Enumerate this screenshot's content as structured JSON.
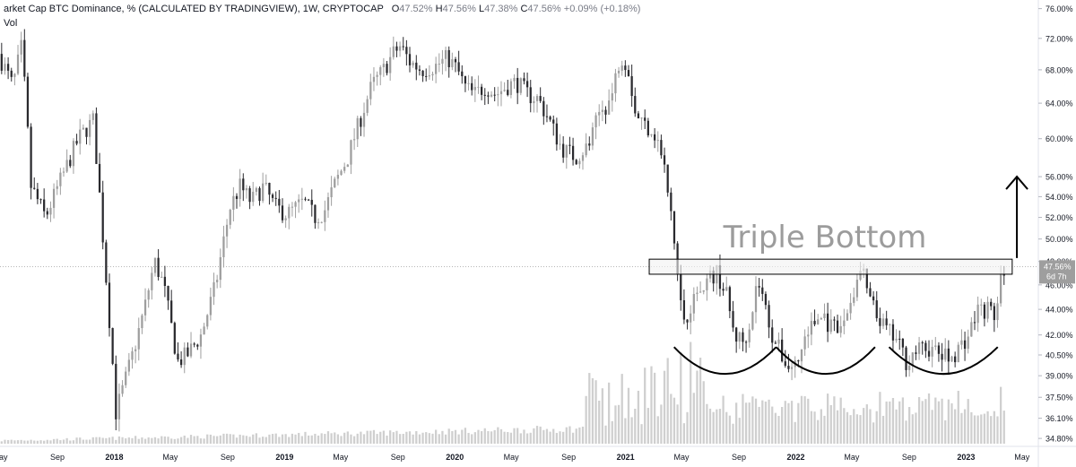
{
  "legend": {
    "title": "arket Cap BTC Dominance, % (CALCULATED BY TRADINGVIEW), 1W, CRYPTOCAP",
    "o_label": "O",
    "o_value": "47.52%",
    "h_label": "H",
    "h_value": "47.56%",
    "l_label": "L",
    "l_value": "47.38%",
    "c_label": "C",
    "c_value": "47.56%",
    "change": "+0.09% (+0.18%)",
    "vol_label": "Vol"
  },
  "colors": {
    "up": "#9e9e9e",
    "down": "#2a2a2e",
    "volume": "#cfcfcf",
    "last_price_box": "#9e9e9e",
    "annotation": "#000000",
    "annotation_text": "#9c9c9c",
    "resistance_fill": "#f2f2f2"
  },
  "chart_data": {
    "type": "candlestick",
    "y_scale": "log",
    "ylim": [
      34.3,
      77.2
    ],
    "x_range": [
      "2017-05-01",
      "2023-06-05"
    ],
    "y_ticks": [
      "76.00%",
      "72.00%",
      "68.00%",
      "64.00%",
      "60.00%",
      "56.00%",
      "54.00%",
      "52.00%",
      "50.00%",
      "48.00%",
      "46.00%",
      "44.00%",
      "42.00%",
      "40.50%",
      "39.00%",
      "37.50%",
      "36.10%",
      "34.80%"
    ],
    "x_ticks": [
      {
        "label": "May",
        "date": "2017-05-01"
      },
      {
        "label": "Sep",
        "date": "2017-09-01"
      },
      {
        "label": "2018",
        "date": "2018-01-01"
      },
      {
        "label": "May",
        "date": "2018-05-01"
      },
      {
        "label": "Sep",
        "date": "2018-09-01"
      },
      {
        "label": "2019",
        "date": "2019-01-01"
      },
      {
        "label": "May",
        "date": "2019-05-01"
      },
      {
        "label": "Sep",
        "date": "2019-09-01"
      },
      {
        "label": "2020",
        "date": "2020-01-01"
      },
      {
        "label": "May",
        "date": "2020-05-01"
      },
      {
        "label": "Sep",
        "date": "2020-09-01"
      },
      {
        "label": "2021",
        "date": "2021-01-01"
      },
      {
        "label": "May",
        "date": "2021-05-01"
      },
      {
        "label": "Sep",
        "date": "2021-09-01"
      },
      {
        "label": "2022",
        "date": "2022-01-01"
      },
      {
        "label": "May",
        "date": "2022-05-01"
      },
      {
        "label": "Sep",
        "date": "2022-09-01"
      },
      {
        "label": "2023",
        "date": "2023-01-01"
      },
      {
        "label": "May",
        "date": "2023-05-01"
      }
    ],
    "series_path": [
      [
        "2017-05-01",
        70
      ],
      [
        "2017-06-01",
        66
      ],
      [
        "2017-06-20",
        71
      ],
      [
        "2017-07-10",
        55
      ],
      [
        "2017-08-10",
        52
      ],
      [
        "2017-09-15",
        56
      ],
      [
        "2017-10-20",
        60
      ],
      [
        "2017-11-20",
        62
      ],
      [
        "2017-12-15",
        48
      ],
      [
        "2018-01-08",
        36.5
      ],
      [
        "2018-01-25",
        38.3
      ],
      [
        "2018-02-15",
        40.8
      ],
      [
        "2018-03-10",
        44
      ],
      [
        "2018-04-01",
        48
      ],
      [
        "2018-04-20",
        46
      ],
      [
        "2018-05-20",
        40
      ],
      [
        "2018-06-10",
        40.5
      ],
      [
        "2018-07-10",
        42
      ],
      [
        "2018-08-10",
        46
      ],
      [
        "2018-09-10",
        53
      ],
      [
        "2018-10-01",
        55
      ],
      [
        "2018-10-25",
        53.5
      ],
      [
        "2018-11-20",
        55
      ],
      [
        "2018-12-15",
        53
      ],
      [
        "2019-01-10",
        52.3
      ],
      [
        "2019-02-15",
        53.5
      ],
      [
        "2019-03-10",
        52
      ],
      [
        "2019-03-30",
        52.5
      ],
      [
        "2019-04-20",
        55
      ],
      [
        "2019-05-20",
        58
      ],
      [
        "2019-06-15",
        62
      ],
      [
        "2019-07-10",
        66
      ],
      [
        "2019-08-05",
        68
      ],
      [
        "2019-08-25",
        70
      ],
      [
        "2019-09-10",
        71
      ],
      [
        "2019-09-30",
        69
      ],
      [
        "2019-10-25",
        68
      ],
      [
        "2019-11-25",
        68.5
      ],
      [
        "2019-12-20",
        69.5
      ],
      [
        "2020-01-10",
        68
      ],
      [
        "2020-01-25",
        66
      ],
      [
        "2020-02-15",
        65
      ],
      [
        "2020-03-10",
        66
      ],
      [
        "2020-04-01",
        65
      ],
      [
        "2020-04-25",
        66
      ],
      [
        "2020-05-15",
        66.5
      ],
      [
        "2020-06-10",
        65
      ],
      [
        "2020-07-01",
        64.5
      ],
      [
        "2020-07-25",
        62
      ],
      [
        "2020-08-20",
        59
      ],
      [
        "2020-09-20",
        58
      ],
      [
        "2020-10-20",
        59.5
      ],
      [
        "2020-11-10",
        63
      ],
      [
        "2020-12-05",
        64.5
      ],
      [
        "2020-12-25",
        70
      ],
      [
        "2021-01-10",
        68.5
      ],
      [
        "2021-01-25",
        63
      ],
      [
        "2021-02-15",
        61.5
      ],
      [
        "2021-03-05",
        61
      ],
      [
        "2021-03-25",
        58
      ],
      [
        "2021-04-15",
        51
      ],
      [
        "2021-05-01",
        45
      ],
      [
        "2021-05-12",
        43
      ],
      [
        "2021-05-25",
        44.5
      ],
      [
        "2021-06-10",
        45.5
      ],
      [
        "2021-07-01",
        46.5
      ],
      [
        "2021-07-20",
        47
      ],
      [
        "2021-08-10",
        45
      ],
      [
        "2021-08-25",
        42
      ],
      [
        "2021-09-15",
        41.5
      ],
      [
        "2021-10-01",
        43.5
      ],
      [
        "2021-10-15",
        46.5
      ],
      [
        "2021-11-01",
        44
      ],
      [
        "2021-11-15",
        42
      ],
      [
        "2021-12-05",
        40.5
      ],
      [
        "2021-12-20",
        39.6
      ],
      [
        "2022-01-10",
        40
      ],
      [
        "2022-01-25",
        42
      ],
      [
        "2022-02-15",
        43
      ],
      [
        "2022-03-05",
        43.5
      ],
      [
        "2022-03-20",
        42.5
      ],
      [
        "2022-04-10",
        42.2
      ],
      [
        "2022-04-30",
        44.5
      ],
      [
        "2022-05-15",
        46
      ],
      [
        "2022-05-25",
        47.5
      ],
      [
        "2022-06-10",
        45
      ],
      [
        "2022-06-25",
        43.5
      ],
      [
        "2022-07-15",
        42.5
      ],
      [
        "2022-08-10",
        41.5
      ],
      [
        "2022-08-30",
        40
      ],
      [
        "2022-09-20",
        40.8
      ],
      [
        "2022-10-15",
        41
      ],
      [
        "2022-11-10",
        40.5
      ],
      [
        "2022-11-30",
        40.2
      ],
      [
        "2022-12-20",
        41
      ],
      [
        "2023-01-10",
        42
      ],
      [
        "2023-01-30",
        44
      ],
      [
        "2023-02-20",
        44
      ],
      [
        "2023-03-10",
        43.5
      ],
      [
        "2023-03-25",
        47.5
      ]
    ],
    "last_price": {
      "label": "47.56%",
      "countdown": "6d 7h",
      "value": 47.56
    },
    "annotations": {
      "text": "Triple Bottom",
      "resistance_zone": {
        "from": "2021-05-01",
        "to": "2023-04-10",
        "low": 46.9,
        "high": 48.2
      },
      "bottoms": [
        {
          "from": "2021-04-15",
          "to": "2021-11-20",
          "depth": 39
        },
        {
          "from": "2021-11-20",
          "to": "2022-06-20",
          "depth": 39
        },
        {
          "from": "2022-07-20",
          "to": "2023-03-10",
          "depth": 39
        }
      ],
      "arrow": {
        "date": "2023-04-20",
        "from": 48.3,
        "to": 56
      }
    }
  }
}
